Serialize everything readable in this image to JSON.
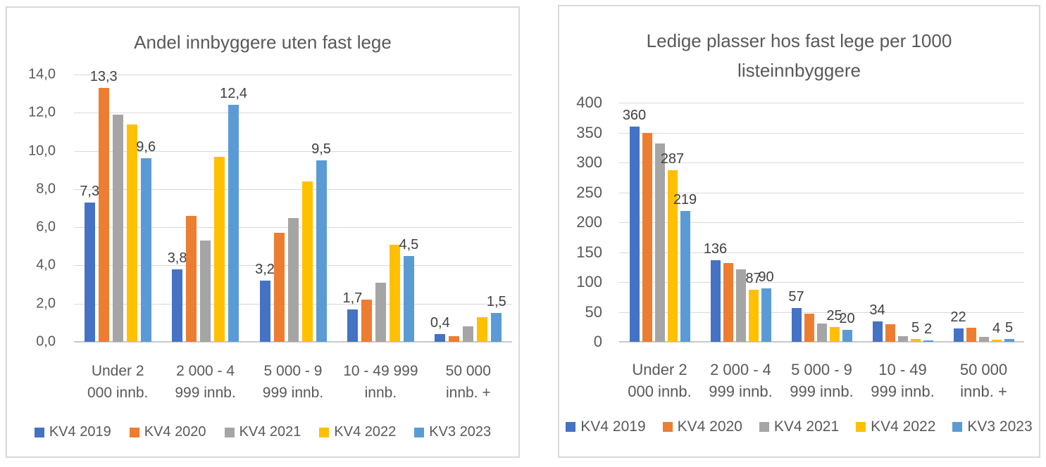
{
  "styles": {
    "grid_color": "#D9D9D9",
    "axis_color": "#C9C9C9",
    "text_color": "#595959",
    "data_label_color": "#404040",
    "panel_border": "#D9D9D9",
    "series_colors": [
      "#4472C4",
      "#ED7D31",
      "#A5A5A5",
      "#FFC000",
      "#5B9BD5"
    ]
  },
  "chart_data": [
    {
      "type": "bar",
      "title": "Andel innbyggere uten fast lege",
      "xlabel": "",
      "ylabel": "",
      "ylim": [
        0,
        14
      ],
      "ytick_step": 2,
      "yticks": [
        "0,0",
        "2,0",
        "4,0",
        "6,0",
        "8,0",
        "10,0",
        "12,0",
        "14,0"
      ],
      "grid": true,
      "legend_position": "bottom",
      "categories": [
        "Under 2\n000 innb.",
        "2 000 - 4\n999 innb.",
        "5 000 - 9\n999 innb.",
        "10 - 49 999\ninnb.",
        "50 000\ninnb. +"
      ],
      "series": [
        {
          "name": "KV4 2019",
          "color": "#4472C4",
          "values": [
            7.3,
            3.8,
            3.2,
            1.7,
            0.4
          ],
          "labels": [
            "7,3",
            "3,8",
            "3,2",
            "1,7",
            "0,4"
          ]
        },
        {
          "name": "KV4 2020",
          "color": "#ED7D31",
          "values": [
            13.3,
            6.6,
            5.7,
            2.2,
            0.3
          ],
          "labels": [
            "13,3",
            null,
            null,
            null,
            null
          ]
        },
        {
          "name": "KV4 2021",
          "color": "#A5A5A5",
          "values": [
            11.9,
            5.3,
            6.5,
            3.1,
            0.8
          ],
          "labels": [
            null,
            null,
            null,
            null,
            null
          ]
        },
        {
          "name": "KV4 2022",
          "color": "#FFC000",
          "values": [
            11.4,
            9.7,
            8.4,
            5.1,
            1.3
          ],
          "labels": [
            null,
            null,
            null,
            null,
            null
          ]
        },
        {
          "name": "KV3 2023",
          "color": "#5B9BD5",
          "values": [
            9.6,
            12.4,
            9.5,
            4.5,
            1.5
          ],
          "labels": [
            "9,6",
            "12,4",
            "9,5",
            "4,5",
            "1,5"
          ]
        }
      ]
    },
    {
      "type": "bar",
      "title": "Ledige plasser hos fast lege per 1000 listeinnbyggere",
      "xlabel": "",
      "ylabel": "",
      "ylim": [
        0,
        400
      ],
      "ytick_step": 50,
      "yticks": [
        "0",
        "50",
        "100",
        "150",
        "200",
        "250",
        "300",
        "350",
        "400"
      ],
      "grid": true,
      "legend_position": "bottom",
      "categories": [
        "Under 2\n000 innb.",
        "2 000 - 4\n999 innb.",
        "5 000 - 9\n999 innb.",
        "10 - 49\n999 innb.",
        "50 000\ninnb. +"
      ],
      "series": [
        {
          "name": "KV4 2019",
          "color": "#4472C4",
          "values": [
            360,
            136,
            57,
            34,
            22
          ],
          "labels": [
            "360",
            "136",
            "57",
            "34",
            "22"
          ]
        },
        {
          "name": "KV4 2020",
          "color": "#ED7D31",
          "values": [
            350,
            132,
            47,
            30,
            24
          ],
          "labels": [
            null,
            null,
            null,
            null,
            null
          ]
        },
        {
          "name": "KV4 2021",
          "color": "#A5A5A5",
          "values": [
            332,
            121,
            31,
            10,
            8
          ],
          "labels": [
            null,
            null,
            null,
            null,
            null
          ]
        },
        {
          "name": "KV4 2022",
          "color": "#FFC000",
          "values": [
            287,
            87,
            25,
            5,
            4
          ],
          "labels": [
            "287",
            "87",
            "25",
            "5",
            "4"
          ]
        },
        {
          "name": "KV3 2023",
          "color": "#5B9BD5",
          "values": [
            219,
            90,
            20,
            2,
            5
          ],
          "labels": [
            "219",
            "90",
            "20",
            "2",
            "5"
          ]
        }
      ]
    }
  ]
}
